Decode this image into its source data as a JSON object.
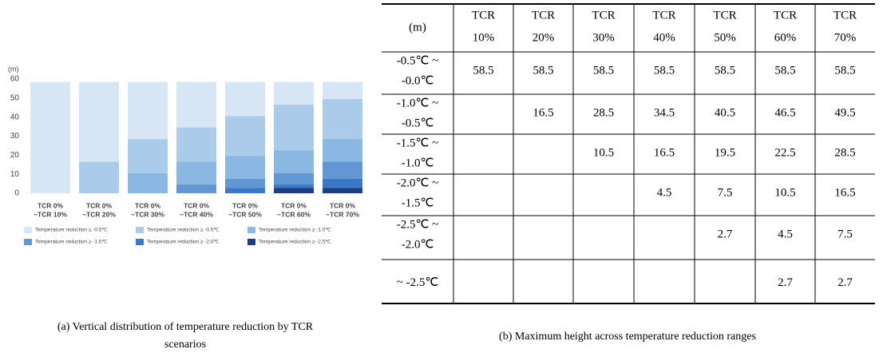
{
  "chart_data": {
    "type": "bar",
    "barmode": "overlay",
    "ylabel": "(m)",
    "categories": [
      [
        "TCR 0%",
        "~TCR 10%"
      ],
      [
        "TCR 0%",
        "~TCR 20%"
      ],
      [
        "TCR 0%",
        "~TCR 30%"
      ],
      [
        "TCR 0%",
        "~TCR 40%"
      ],
      [
        "TCR 0%",
        "~TCR 50%"
      ],
      [
        "TCR 0%",
        "~TCR 60%"
      ],
      [
        "TCR 0%",
        "~TCR 70%"
      ]
    ],
    "series": [
      {
        "name": "Temperature reduction ≤ -0.5℃",
        "color": "#d7e6f5",
        "values": [
          58.5,
          58.5,
          58.5,
          58.5,
          58.5,
          58.5,
          58.5
        ]
      },
      {
        "name": "Temperature reduction ≥ -0.5℃",
        "color": "#abcbea",
        "values": [
          null,
          16.5,
          28.5,
          34.5,
          40.5,
          46.5,
          49.5
        ]
      },
      {
        "name": "Temperature reduction ≥ -1.0℃",
        "color": "#8bb8e2",
        "values": [
          null,
          null,
          10.5,
          16.5,
          19.5,
          22.5,
          28.5
        ]
      },
      {
        "name": "Temperature reduction ≥ -1.5℃",
        "color": "#6198d4",
        "values": [
          null,
          null,
          null,
          4.5,
          7.5,
          10.5,
          16.5
        ]
      },
      {
        "name": "Temperature reduction ≥ -2.0℃",
        "color": "#3b78c7",
        "values": [
          null,
          null,
          null,
          null,
          2.7,
          4.5,
          7.5
        ]
      },
      {
        "name": "Temperature reduction ≥ -2.5℃",
        "color": "#1f3e80",
        "values": [
          null,
          null,
          null,
          null,
          null,
          2.7,
          2.7
        ]
      }
    ],
    "ylim": [
      0,
      60
    ],
    "yticks": [
      0,
      10,
      20,
      30,
      40,
      50,
      60
    ],
    "caption": [
      "(a) Vertical distribution of temperature reduction by TCR",
      "scenarios"
    ]
  },
  "table": {
    "corner": "(m)",
    "columns": [
      [
        "TCR",
        "10%"
      ],
      [
        "TCR",
        "20%"
      ],
      [
        "TCR",
        "30%"
      ],
      [
        "TCR",
        "40%"
      ],
      [
        "TCR",
        "50%"
      ],
      [
        "TCR",
        "60%"
      ],
      [
        "TCR",
        "70%"
      ]
    ],
    "rows": [
      {
        "label": [
          "-0.5℃ ~",
          "-0.0℃"
        ],
        "cells": [
          58.5,
          58.5,
          58.5,
          58.5,
          58.5,
          58.5,
          58.5
        ]
      },
      {
        "label": [
          "-1.0℃ ~",
          "-0.5℃"
        ],
        "cells": [
          null,
          16.5,
          28.5,
          34.5,
          40.5,
          46.5,
          49.5
        ]
      },
      {
        "label": [
          "-1.5℃ ~",
          "-1.0℃"
        ],
        "cells": [
          null,
          null,
          10.5,
          16.5,
          19.5,
          22.5,
          28.5
        ]
      },
      {
        "label": [
          "-2.0℃ ~",
          "-1.5℃"
        ],
        "cells": [
          null,
          null,
          null,
          4.5,
          7.5,
          10.5,
          16.5
        ]
      },
      {
        "label": [
          "-2.5℃ ~",
          "-2.0℃"
        ],
        "cells": [
          null,
          null,
          null,
          null,
          2.7,
          4.5,
          7.5
        ]
      },
      {
        "label": [
          "~ -2.5℃"
        ],
        "cells": [
          null,
          null,
          null,
          null,
          null,
          2.7,
          2.7
        ]
      }
    ],
    "caption": "(b) Maximum height across temperature reduction ranges"
  }
}
